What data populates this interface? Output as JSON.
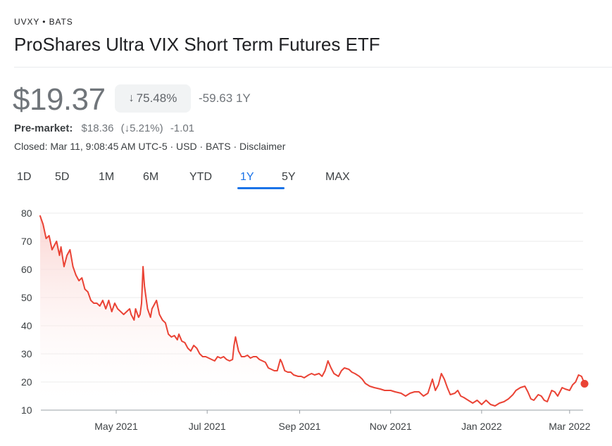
{
  "header": {
    "ticker": "UVXY • BATS",
    "name": "ProShares Ultra VIX Short Term Futures ETF"
  },
  "quote": {
    "price": "$19.37",
    "change_pct_arrow": "↓",
    "change_pct": "75.48%",
    "change_abs": "-59.63",
    "change_period": "1Y"
  },
  "premarket": {
    "label": "Pre-market:",
    "price": "$18.36",
    "pct": "(↓5.21%)",
    "abs": "-1.01"
  },
  "status": {
    "text": "Closed: Mar 11, 9:08:45 AM UTC-5 · USD · BATS · Disclaimer"
  },
  "range_tabs": [
    "1D",
    "5D",
    "1M",
    "6M",
    "YTD",
    "1Y",
    "5Y",
    "MAX"
  ],
  "selected_tab": "1Y",
  "colors": {
    "line": "#ea4335",
    "fill_top": "#fad2cf",
    "accent": "#1a73e8"
  },
  "chart_data": {
    "type": "area",
    "title": "",
    "xlabel": "",
    "ylabel": "",
    "ylim": [
      10,
      80
    ],
    "yticks": [
      10,
      20,
      30,
      40,
      50,
      60,
      70,
      80
    ],
    "xlim": [
      "2021-03-11",
      "2022-03-11"
    ],
    "xticks": [
      {
        "date": "2021-05-01",
        "label": "May 2021"
      },
      {
        "date": "2021-07-01",
        "label": "Jul 2021"
      },
      {
        "date": "2021-09-01",
        "label": "Sep 2021"
      },
      {
        "date": "2021-11-01",
        "label": "Nov 2021"
      },
      {
        "date": "2022-01-01",
        "label": "Jan 2022"
      },
      {
        "date": "2022-03-01",
        "label": "Mar 2022"
      }
    ],
    "grid": true,
    "series": [
      {
        "points": [
          [
            "2021-03-11",
            79
          ],
          [
            "2021-03-13",
            76
          ],
          [
            "2021-03-15",
            71
          ],
          [
            "2021-03-17",
            72
          ],
          [
            "2021-03-19",
            67
          ],
          [
            "2021-03-22",
            70
          ],
          [
            "2021-03-24",
            65
          ],
          [
            "2021-03-25",
            68
          ],
          [
            "2021-03-27",
            61
          ],
          [
            "2021-03-29",
            65
          ],
          [
            "2021-03-31",
            67
          ],
          [
            "2021-04-02",
            61
          ],
          [
            "2021-04-04",
            58
          ],
          [
            "2021-04-06",
            56
          ],
          [
            "2021-04-08",
            57
          ],
          [
            "2021-04-10",
            53
          ],
          [
            "2021-04-12",
            52
          ],
          [
            "2021-04-14",
            49
          ],
          [
            "2021-04-16",
            48
          ],
          [
            "2021-04-18",
            48
          ],
          [
            "2021-04-20",
            47
          ],
          [
            "2021-04-22",
            49
          ],
          [
            "2021-04-24",
            46
          ],
          [
            "2021-04-26",
            49
          ],
          [
            "2021-04-28",
            45
          ],
          [
            "2021-04-30",
            48
          ],
          [
            "2021-05-02",
            46
          ],
          [
            "2021-05-04",
            45
          ],
          [
            "2021-05-06",
            44
          ],
          [
            "2021-05-08",
            45
          ],
          [
            "2021-05-10",
            46
          ],
          [
            "2021-05-11",
            44
          ],
          [
            "2021-05-13",
            42
          ],
          [
            "2021-05-14",
            46
          ],
          [
            "2021-05-16",
            43
          ],
          [
            "2021-05-17",
            44
          ],
          [
            "2021-05-18",
            48
          ],
          [
            "2021-05-19",
            61
          ],
          [
            "2021-05-20",
            54
          ],
          [
            "2021-05-22",
            46
          ],
          [
            "2021-05-24",
            43
          ],
          [
            "2021-05-25",
            46
          ],
          [
            "2021-05-27",
            48
          ],
          [
            "2021-05-28",
            49
          ],
          [
            "2021-05-30",
            44
          ],
          [
            "2021-06-01",
            42
          ],
          [
            "2021-06-03",
            41
          ],
          [
            "2021-06-05",
            37
          ],
          [
            "2021-06-07",
            36
          ],
          [
            "2021-06-09",
            36.5
          ],
          [
            "2021-06-11",
            35
          ],
          [
            "2021-06-12",
            37
          ],
          [
            "2021-06-14",
            34.5
          ],
          [
            "2021-06-16",
            34
          ],
          [
            "2021-06-18",
            32
          ],
          [
            "2021-06-20",
            31
          ],
          [
            "2021-06-22",
            33
          ],
          [
            "2021-06-24",
            32
          ],
          [
            "2021-06-26",
            30
          ],
          [
            "2021-06-28",
            29
          ],
          [
            "2021-06-30",
            29
          ],
          [
            "2021-07-02",
            28.5
          ],
          [
            "2021-07-04",
            28
          ],
          [
            "2021-07-06",
            27.5
          ],
          [
            "2021-07-08",
            29
          ],
          [
            "2021-07-10",
            28.5
          ],
          [
            "2021-07-12",
            29
          ],
          [
            "2021-07-14",
            28
          ],
          [
            "2021-07-16",
            27.5
          ],
          [
            "2021-07-18",
            28
          ],
          [
            "2021-07-19",
            33
          ],
          [
            "2021-07-20",
            36
          ],
          [
            "2021-07-22",
            31
          ],
          [
            "2021-07-24",
            29
          ],
          [
            "2021-07-26",
            29
          ],
          [
            "2021-07-28",
            29.5
          ],
          [
            "2021-07-30",
            28.5
          ],
          [
            "2021-08-01",
            29
          ],
          [
            "2021-08-03",
            29
          ],
          [
            "2021-08-05",
            28
          ],
          [
            "2021-08-07",
            27.5
          ],
          [
            "2021-08-09",
            27
          ],
          [
            "2021-08-11",
            25
          ],
          [
            "2021-08-13",
            24.5
          ],
          [
            "2021-08-15",
            24
          ],
          [
            "2021-08-17",
            24
          ],
          [
            "2021-08-19",
            28
          ],
          [
            "2021-08-20",
            27
          ],
          [
            "2021-08-22",
            24
          ],
          [
            "2021-08-24",
            23.5
          ],
          [
            "2021-08-26",
            23.5
          ],
          [
            "2021-08-28",
            22.5
          ],
          [
            "2021-08-31",
            22
          ],
          [
            "2021-09-02",
            22
          ],
          [
            "2021-09-04",
            21.5
          ],
          [
            "2021-09-07",
            22.5
          ],
          [
            "2021-09-09",
            23
          ],
          [
            "2021-09-11",
            22.5
          ],
          [
            "2021-09-14",
            23
          ],
          [
            "2021-09-16",
            22
          ],
          [
            "2021-09-18",
            24
          ],
          [
            "2021-09-20",
            27.5
          ],
          [
            "2021-09-22",
            25
          ],
          [
            "2021-09-24",
            23
          ],
          [
            "2021-09-27",
            22
          ],
          [
            "2021-09-29",
            24
          ],
          [
            "2021-10-01",
            25
          ],
          [
            "2021-10-04",
            24.5
          ],
          [
            "2021-10-06",
            23.5
          ],
          [
            "2021-10-08",
            23
          ],
          [
            "2021-10-11",
            22
          ],
          [
            "2021-10-13",
            21
          ],
          [
            "2021-10-15",
            19.5
          ],
          [
            "2021-10-18",
            18.5
          ],
          [
            "2021-10-21",
            18
          ],
          [
            "2021-10-25",
            17.5
          ],
          [
            "2021-10-28",
            17
          ],
          [
            "2021-11-01",
            17
          ],
          [
            "2021-11-04",
            16.5
          ],
          [
            "2021-11-08",
            16
          ],
          [
            "2021-11-11",
            15
          ],
          [
            "2021-11-14",
            16
          ],
          [
            "2021-11-17",
            16.5
          ],
          [
            "2021-11-20",
            16.5
          ],
          [
            "2021-11-23",
            15
          ],
          [
            "2021-11-26",
            16
          ],
          [
            "2021-11-29",
            21
          ],
          [
            "2021-12-01",
            17
          ],
          [
            "2021-12-03",
            19
          ],
          [
            "2021-12-05",
            23
          ],
          [
            "2021-12-07",
            21
          ],
          [
            "2021-12-09",
            18
          ],
          [
            "2021-12-11",
            15.5
          ],
          [
            "2021-12-14",
            16
          ],
          [
            "2021-12-16",
            17
          ],
          [
            "2021-12-18",
            15
          ],
          [
            "2021-12-20",
            14.5
          ],
          [
            "2021-12-23",
            13.5
          ],
          [
            "2021-12-26",
            12.5
          ],
          [
            "2021-12-29",
            13.5
          ],
          [
            "2022-01-01",
            12
          ],
          [
            "2022-01-04",
            13.5
          ],
          [
            "2022-01-07",
            12
          ],
          [
            "2022-01-10",
            11.5
          ],
          [
            "2022-01-13",
            12.5
          ],
          [
            "2022-01-16",
            13
          ],
          [
            "2022-01-19",
            14
          ],
          [
            "2022-01-22",
            15.5
          ],
          [
            "2022-01-24",
            17
          ],
          [
            "2022-01-27",
            18
          ],
          [
            "2022-01-30",
            18.5
          ],
          [
            "2022-02-01",
            16.5
          ],
          [
            "2022-02-03",
            14
          ],
          [
            "2022-02-05",
            13.5
          ],
          [
            "2022-02-08",
            15.5
          ],
          [
            "2022-02-10",
            15
          ],
          [
            "2022-02-12",
            13.5
          ],
          [
            "2022-02-14",
            13
          ],
          [
            "2022-02-17",
            17
          ],
          [
            "2022-02-19",
            16.5
          ],
          [
            "2022-02-21",
            15
          ],
          [
            "2022-02-24",
            18
          ],
          [
            "2022-02-26",
            17.5
          ],
          [
            "2022-03-01",
            17
          ],
          [
            "2022-03-03",
            19
          ],
          [
            "2022-03-05",
            20
          ],
          [
            "2022-03-07",
            22.5
          ],
          [
            "2022-03-09",
            22
          ],
          [
            "2022-03-11",
            19.37
          ]
        ]
      }
    ]
  }
}
